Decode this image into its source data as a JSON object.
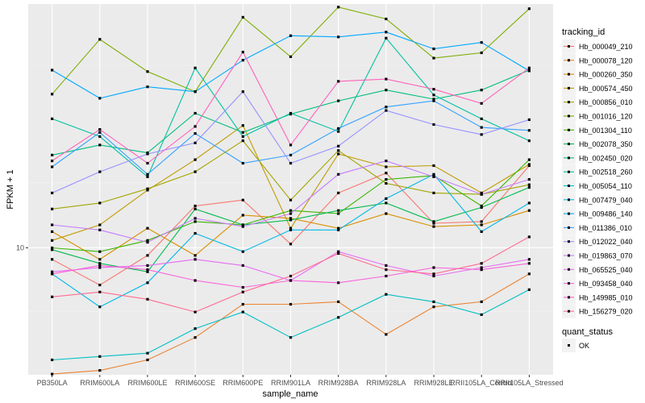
{
  "chart_data": {
    "type": "line",
    "title": "",
    "xlabel": "sample_name",
    "ylabel": "FPKM + 1",
    "y_scale": "log10",
    "ylim": [
      5.08,
      36.7
    ],
    "y_ticks": [
      10
    ],
    "y_tick_labels": [
      "10"
    ],
    "categories": [
      "PB350LA",
      "RRIM600LA",
      "RRIM600LE",
      "RRIM600SE",
      "RRIM600PE",
      "RRIM901LA",
      "RRIM928BA",
      "RRIM928LA",
      "RRIM928LE",
      "RRII105LA_Control",
      "RRII105LA_Stressed"
    ],
    "tick_labels": [
      "PB350LA",
      "RRIM600LA",
      "RRIM600LE",
      "RRIM600SE",
      "RRIM600PE",
      "RRIM901LA",
      "RRIM928BA",
      "RRIM928LA",
      "RRIM928LE",
      "RRII105LA_Control",
      "RRII105LA_Stressed"
    ],
    "grid": true,
    "legend": {
      "title": "tracking_id",
      "position": "right",
      "shape_title": "quant_status",
      "shape_entries": [
        "OK"
      ]
    },
    "series": [
      {
        "name": "Hb_000049_210",
        "color": "#F8766D",
        "values": [
          9.4,
          8.2,
          9.6,
          12.5,
          12.9,
          10.2,
          13.4,
          14.9,
          11.4,
          11.5,
          15.5
        ]
      },
      {
        "name": "Hb_000078_120",
        "color": "#EA8331",
        "values": [
          5.1,
          5.2,
          5.5,
          6.2,
          7.4,
          7.4,
          7.5,
          6.3,
          7.3,
          7.5,
          8.7
        ]
      },
      {
        "name": "Hb_000260_350",
        "color": "#D89000",
        "values": [
          10.9,
          9.4,
          11.1,
          9.6,
          11.9,
          11.7,
          11.1,
          12.0,
          11.2,
          11.3,
          12.2
        ]
      },
      {
        "name": "Hb_000574_450",
        "color": "#C09B00",
        "values": [
          10.4,
          11.3,
          13.6,
          16.0,
          19.2,
          11.1,
          16.5,
          15.4,
          15.5,
          13.4,
          15.6
        ]
      },
      {
        "name": "Hb_000856_010",
        "color": "#A3A500",
        "values": [
          12.3,
          12.7,
          13.7,
          15.0,
          17.7,
          12.9,
          16.8,
          14.1,
          13.4,
          13.3,
          14.0
        ]
      },
      {
        "name": "Hb_001016_120",
        "color": "#7CAE00",
        "values": [
          22.7,
          30.4,
          25.6,
          23.0,
          34.2,
          27.7,
          36.1,
          33.9,
          27.5,
          28.3,
          35.8
        ]
      },
      {
        "name": "Hb_001304_110",
        "color": "#39B600",
        "values": [
          10.0,
          9.8,
          10.4,
          11.5,
          11.3,
          12.2,
          12.0,
          14.4,
          14.7,
          12.5,
          16.0
        ]
      },
      {
        "name": "Hb_002078_350",
        "color": "#00BB4E",
        "values": [
          9.9,
          9.2,
          8.8,
          12.3,
          11.3,
          11.6,
          12.2,
          12.7,
          11.5,
          12.4,
          13.8
        ]
      },
      {
        "name": "Hb_002450_020",
        "color": "#00BF7D",
        "values": [
          16.4,
          17.3,
          16.6,
          20.5,
          18.5,
          20.4,
          21.9,
          23.2,
          22.1,
          23.2,
          25.8
        ]
      },
      {
        "name": "Hb_002518_260",
        "color": "#00C1A3",
        "values": [
          19.9,
          18.1,
          14.6,
          26.1,
          18.1,
          20.5,
          18.6,
          30.6,
          22.6,
          19.9,
          17.7
        ]
      },
      {
        "name": "Hb_005054_110",
        "color": "#00BFC4",
        "values": [
          5.5,
          5.6,
          5.7,
          6.5,
          7.1,
          6.2,
          6.9,
          7.8,
          7.5,
          7.0,
          8.0
        ]
      },
      {
        "name": "Hb_007479_040",
        "color": "#00B8E7",
        "values": [
          8.7,
          7.3,
          8.3,
          10.8,
          9.8,
          11.0,
          11.0,
          13.0,
          14.8,
          10.9,
          12.7
        ]
      },
      {
        "name": "Hb_009486_140",
        "color": "#00A9FF",
        "values": [
          25.8,
          22.2,
          23.6,
          23.0,
          27.2,
          31.0,
          30.8,
          31.6,
          28.9,
          29.9,
          25.7
        ]
      },
      {
        "name": "Hb_011386_010",
        "color": "#35A2FF",
        "values": [
          15.4,
          18.5,
          14.8,
          18.4,
          15.7,
          16.4,
          18.9,
          21.2,
          21.9,
          19.0,
          18.7
        ]
      },
      {
        "name": "Hb_012022_040",
        "color": "#9590FF",
        "values": [
          13.4,
          15.0,
          16.5,
          17.5,
          23.0,
          15.7,
          17.2,
          20.8,
          19.3,
          18.3,
          19.8
        ]
      },
      {
        "name": "Hb_019863_070",
        "color": "#C77CFF",
        "values": [
          11.3,
          11.0,
          10.3,
          11.7,
          11.2,
          12.0,
          14.8,
          15.9,
          14.6,
          13.3,
          14.4
        ]
      },
      {
        "name": "Hb_065525_040",
        "color": "#E76BF3",
        "values": [
          8.8,
          9.0,
          9.1,
          9.4,
          9.1,
          8.4,
          9.8,
          9.1,
          8.6,
          9.0,
          9.4
        ]
      },
      {
        "name": "Hb_093458_040",
        "color": "#FA62DB",
        "values": [
          8.7,
          9.1,
          8.9,
          8.4,
          8.1,
          8.4,
          8.3,
          8.6,
          9.0,
          8.9,
          9.2
        ]
      },
      {
        "name": "Hb_149985_010",
        "color": "#FF62BC",
        "values": [
          15.9,
          18.8,
          15.7,
          19.1,
          28.4,
          17.3,
          24.3,
          24.6,
          23.3,
          21.6,
          26.1
        ]
      },
      {
        "name": "Hb_156279_020",
        "color": "#FF6C91",
        "values": [
          7.7,
          7.9,
          7.6,
          7.1,
          7.9,
          8.6,
          9.7,
          8.9,
          8.7,
          9.2,
          10.6
        ]
      }
    ]
  }
}
